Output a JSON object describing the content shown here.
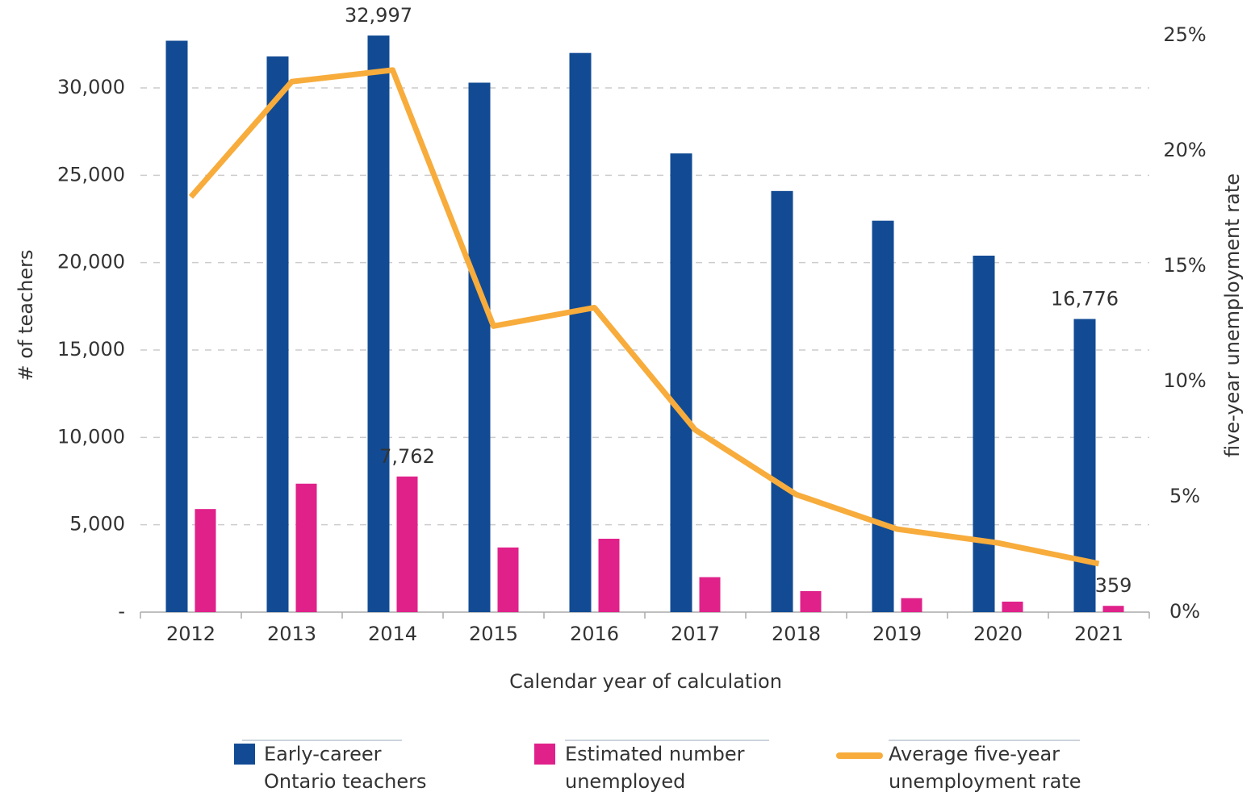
{
  "chart_data": {
    "type": "bar",
    "x_label": "Calendar year of calculation",
    "y_label": "# of teachers",
    "y2_label": "five-year unemployment rate",
    "categories": [
      "2012",
      "2013",
      "2014",
      "2015",
      "2016",
      "2017",
      "2018",
      "2019",
      "2020",
      "2021"
    ],
    "series": [
      {
        "name": "Early-career Ontario teachers",
        "color": "#124b94",
        "values": [
          32700,
          31800,
          32997,
          30300,
          32000,
          26250,
          24100,
          22400,
          20400,
          16776
        ],
        "value_labels": [
          null,
          null,
          "32,997",
          null,
          null,
          null,
          null,
          null,
          null,
          "16,776"
        ]
      },
      {
        "name": "Estimated number unemployed",
        "color": "#e0218a",
        "values": [
          5900,
          7350,
          7762,
          3700,
          4200,
          2000,
          1200,
          800,
          600,
          359
        ],
        "value_labels": [
          null,
          null,
          "7,762",
          null,
          null,
          null,
          null,
          null,
          null,
          "359"
        ]
      },
      {
        "name": "Average five-year unemployment rate",
        "color": "#f7ac3c",
        "type": "line",
        "axis": "y2",
        "values": [
          18.0,
          23.0,
          23.5,
          12.4,
          13.2,
          7.9,
          5.1,
          3.6,
          3.0,
          2.1
        ]
      }
    ],
    "ylim": [
      0,
      33000
    ],
    "yticks": [
      {
        "value": 0,
        "label": "-"
      },
      {
        "value": 5000,
        "label": "5,000"
      },
      {
        "value": 10000,
        "label": "10,000"
      },
      {
        "value": 15000,
        "label": "15,000"
      },
      {
        "value": 20000,
        "label": "20,000"
      },
      {
        "value": 25000,
        "label": "25,000"
      },
      {
        "value": 30000,
        "label": "30,000"
      }
    ],
    "y2lim": [
      0,
      25
    ],
    "y2ticks": [
      {
        "value": 0,
        "label": "0%"
      },
      {
        "value": 5,
        "label": "5%"
      },
      {
        "value": 10,
        "label": "10%"
      },
      {
        "value": 15,
        "label": "15%"
      },
      {
        "value": 20,
        "label": "20%"
      },
      {
        "value": 25,
        "label": "25%"
      }
    ],
    "grid": true,
    "legend": "bottom"
  }
}
